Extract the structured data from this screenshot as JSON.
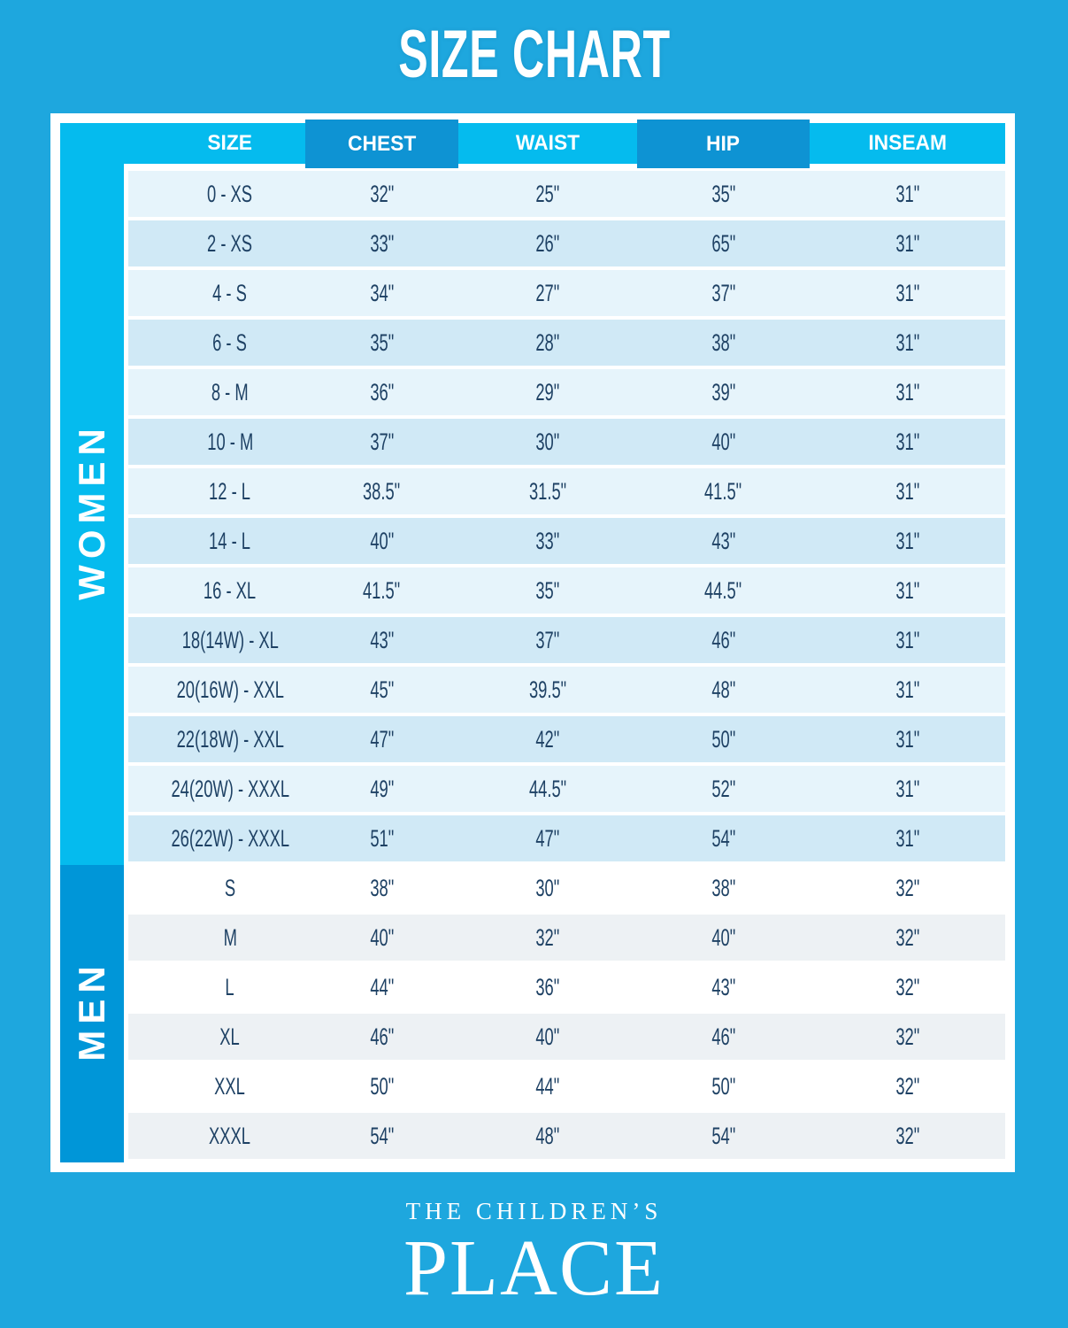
{
  "title": "SIZE CHART",
  "table": {
    "headers": [
      "SIZE",
      "CHEST",
      "WAIST",
      "HIP",
      "INSEAM"
    ],
    "sections": [
      {
        "label": "WOMEN",
        "sidebar_color": "#05BBEE",
        "row_colors": [
          "#E6F4FB",
          "#D0E9F6"
        ],
        "rows": [
          {
            "size": "0 - XS",
            "chest": "32\"",
            "waist": "25\"",
            "hip": "35\"",
            "inseam": "31\""
          },
          {
            "size": "2 - XS",
            "chest": "33\"",
            "waist": "26\"",
            "hip": "65\"",
            "inseam": "31\""
          },
          {
            "size": "4 - S",
            "chest": "34\"",
            "waist": "27\"",
            "hip": "37\"",
            "inseam": "31\""
          },
          {
            "size": "6 - S",
            "chest": "35\"",
            "waist": "28\"",
            "hip": "38\"",
            "inseam": "31\""
          },
          {
            "size": "8 - M",
            "chest": "36\"",
            "waist": "29\"",
            "hip": "39\"",
            "inseam": "31\""
          },
          {
            "size": "10 - M",
            "chest": "37\"",
            "waist": "30\"",
            "hip": "40\"",
            "inseam": "31\""
          },
          {
            "size": "12 - L",
            "chest": "38.5\"",
            "waist": "31.5\"",
            "hip": "41.5\"",
            "inseam": "31\""
          },
          {
            "size": "14 - L",
            "chest": "40\"",
            "waist": "33\"",
            "hip": "43\"",
            "inseam": "31\""
          },
          {
            "size": "16 - XL",
            "chest": "41.5\"",
            "waist": "35\"",
            "hip": "44.5\"",
            "inseam": "31\""
          },
          {
            "size": "18(14W) - XL",
            "chest": "43\"",
            "waist": "37\"",
            "hip": "46\"",
            "inseam": "31\""
          },
          {
            "size": "20(16W) - XXL",
            "chest": "45\"",
            "waist": "39.5\"",
            "hip": "48\"",
            "inseam": "31\""
          },
          {
            "size": "22(18W) - XXL",
            "chest": "47\"",
            "waist": "42\"",
            "hip": "50\"",
            "inseam": "31\""
          },
          {
            "size": "24(20W) - XXXL",
            "chest": "49\"",
            "waist": "44.5\"",
            "hip": "52\"",
            "inseam": "31\""
          },
          {
            "size": "26(22W) - XXXL",
            "chest": "51\"",
            "waist": "47\"",
            "hip": "54\"",
            "inseam": "31\""
          }
        ]
      },
      {
        "label": "MEN",
        "sidebar_color": "#0096D8",
        "row_colors": [
          "#FFFFFF",
          "#EDF1F4"
        ],
        "rows": [
          {
            "size": "S",
            "chest": "38\"",
            "waist": "30\"",
            "hip": "38\"",
            "inseam": "32\""
          },
          {
            "size": "M",
            "chest": "40\"",
            "waist": "32\"",
            "hip": "40\"",
            "inseam": "32\""
          },
          {
            "size": "L",
            "chest": "44\"",
            "waist": "36\"",
            "hip": "43\"",
            "inseam": "32\""
          },
          {
            "size": "XL",
            "chest": "46\"",
            "waist": "40\"",
            "hip": "46\"",
            "inseam": "32\""
          },
          {
            "size": "XXL",
            "chest": "50\"",
            "waist": "44\"",
            "hip": "50\"",
            "inseam": "32\""
          },
          {
            "size": "XXXL",
            "chest": "54\"",
            "waist": "48\"",
            "hip": "54\"",
            "inseam": "32\""
          }
        ]
      }
    ]
  },
  "brand": {
    "line1": "THE CHILDREN’S",
    "line2": "PLACE"
  },
  "colors": {
    "page_bg": "#1EA7DE",
    "header_light": "#05BBEE",
    "header_dark": "#0E93D3",
    "text_navy": "#1E4164",
    "white": "#FFFFFF"
  }
}
